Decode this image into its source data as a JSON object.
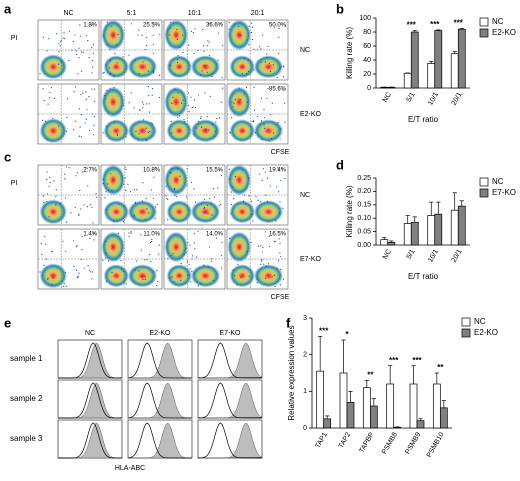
{
  "panel_labels": [
    "a",
    "b",
    "c",
    "d",
    "e",
    "f"
  ],
  "flow_a": {
    "columns": [
      "NC",
      "5:1",
      "10:1",
      "20:1"
    ],
    "rows": [
      {
        "name": "NC",
        "percents": [
          "1.8%",
          "25.5%",
          "36.6%",
          "50.0%"
        ]
      },
      {
        "name": "E2-KO",
        "percents": [
          null,
          null,
          null,
          "85.6%"
        ]
      }
    ],
    "ylabel": "PI",
    "xlabel": "CFSE"
  },
  "flow_c": {
    "rows": [
      {
        "name": "NC",
        "percents": [
          "2.7%",
          "10.8%",
          "15.5%",
          "19.4%"
        ]
      },
      {
        "name": "E7-KO",
        "percents": [
          "1.4%",
          "11.0%",
          "14.0%",
          "16.5%"
        ]
      }
    ],
    "ylabel": "PI",
    "xlabel": "CFSE"
  },
  "histograms_e": {
    "columns": [
      "NC",
      "E2-KO",
      "E7-KO"
    ],
    "rows": [
      "sample 1",
      "sample 2",
      "sample 3"
    ],
    "xlabel": "HLA-ABC"
  },
  "chart_data": [
    {
      "type": "bar",
      "ylabel": "Killing rate (%)",
      "xlabel": "E/T ratio",
      "categories": [
        "NC",
        "5/1",
        "10/1",
        "20/1"
      ],
      "series": [
        {
          "name": "NC",
          "color": "#ffffff",
          "values": [
            1,
            21,
            35,
            49
          ],
          "errors": [
            0.3,
            0.5,
            3,
            3
          ]
        },
        {
          "name": "E2-KO",
          "color": "#808080",
          "values": [
            1,
            80,
            82,
            84
          ],
          "errors": [
            0.3,
            2,
            1,
            1
          ]
        }
      ],
      "annotations": [
        null,
        "***",
        "***",
        "***"
      ],
      "ylim": [
        0,
        100
      ],
      "yticks": [
        0,
        20,
        40,
        60,
        80,
        100
      ],
      "legend": "right"
    },
    {
      "type": "bar",
      "ylabel": "Killing rate (%)",
      "xlabel": "E/T ratio",
      "categories": [
        "NC",
        "5/1",
        "10/1",
        "20/1"
      ],
      "series": [
        {
          "name": "NC",
          "color": "#ffffff",
          "values": [
            0.02,
            0.08,
            0.11,
            0.13
          ],
          "errors": [
            0.008,
            0.03,
            0.05,
            0.065
          ]
        },
        {
          "name": "E7-KO",
          "color": "#808080",
          "values": [
            0.01,
            0.085,
            0.115,
            0.145
          ],
          "errors": [
            0.005,
            0.02,
            0.045,
            0.02
          ]
        }
      ],
      "ylim": [
        0,
        0.25
      ],
      "yticks": [
        {
          "value": 0,
          "label": "0.00"
        },
        {
          "value": 0.05,
          "label": "0.05"
        },
        {
          "value": 0.1,
          "label": "0.10"
        },
        {
          "value": 0.15,
          "label": "0.15"
        },
        {
          "value": 0.2,
          "label": "0.20"
        },
        {
          "value": 0.25,
          "label": "0.25"
        }
      ],
      "legend": "right"
    },
    {
      "type": "bar",
      "ylabel": "Relative expression values",
      "categories": [
        "TAP1",
        "TAP2",
        "TAPBP",
        "PSMB8",
        "PSMB9",
        "PSMB10"
      ],
      "series": [
        {
          "name": "NC",
          "color": "#ffffff",
          "values": [
            1.55,
            1.5,
            1.1,
            1.2,
            1.2,
            1.2
          ],
          "errors": [
            0.95,
            0.9,
            0.2,
            0.5,
            0.5,
            0.3
          ]
        },
        {
          "name": "E2-KO",
          "color": "#808080",
          "values": [
            0.25,
            0.7,
            0.6,
            0.02,
            0.2,
            0.55
          ],
          "errors": [
            0.08,
            0.3,
            0.2,
            0.01,
            0.05,
            0.2
          ]
        }
      ],
      "annotations": [
        "***",
        "*",
        "**",
        "***",
        "***",
        "**"
      ],
      "ylim": [
        0,
        3
      ],
      "yticks": [
        0,
        1,
        2,
        3
      ],
      "legend": "right"
    }
  ]
}
